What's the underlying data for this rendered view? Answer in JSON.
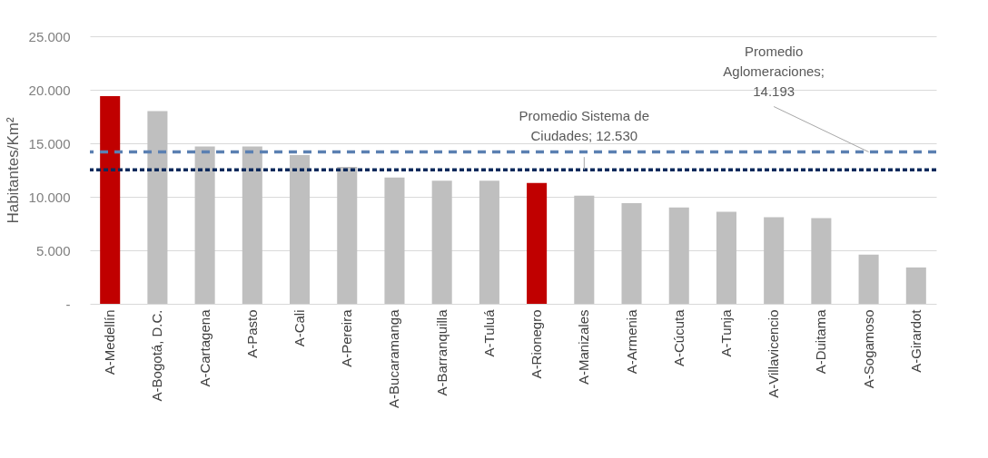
{
  "chart_data": {
    "type": "bar",
    "ylabel": "Habitantes/Km²",
    "categories": [
      "A-Medellín",
      "A-Bogotá, D.C.",
      "A-Cartagena",
      "A-Pasto",
      "A-Cali",
      "A-Pereira",
      "A-Bucaramanga",
      "A-Barranquilla",
      "A-Tuluá",
      "A-Rionegro",
      "A-Manizales",
      "A-Armenia",
      "A-Cúcuta",
      "A-Tunja",
      "A-Villavicencio",
      "A-Duitama",
      "A-Sogamoso",
      "A-Girardot"
    ],
    "values": [
      19400,
      18000,
      14700,
      14700,
      13900,
      12800,
      11800,
      11500,
      11500,
      11300,
      10100,
      9400,
      9000,
      8600,
      8100,
      8000,
      4600,
      3400
    ],
    "colors": [
      "#c00000",
      "#bfbfbf",
      "#bfbfbf",
      "#bfbfbf",
      "#bfbfbf",
      "#bfbfbf",
      "#bfbfbf",
      "#bfbfbf",
      "#bfbfbf",
      "#c00000",
      "#bfbfbf",
      "#bfbfbf",
      "#bfbfbf",
      "#bfbfbf",
      "#bfbfbf",
      "#bfbfbf",
      "#bfbfbf",
      "#bfbfbf"
    ],
    "ylim": [
      0,
      25000
    ],
    "yticks": [
      {
        "value": 0,
        "label": "-"
      },
      {
        "value": 5000,
        "label": "5.000"
      },
      {
        "value": 10000,
        "label": "10.000"
      },
      {
        "value": 15000,
        "label": "15.000"
      },
      {
        "value": 20000,
        "label": "20.000"
      },
      {
        "value": 25000,
        "label": "25.000"
      }
    ],
    "grid": "y",
    "ref_lines": [
      {
        "axis": "y",
        "value": 12530,
        "label": "Promedio Sistema de\nCiudades;  12.530",
        "color": "#0d2a5c",
        "line_style": "dotted"
      },
      {
        "axis": "y",
        "value": 14193,
        "label": "Promedio\nAglomeraciones;\n14.193",
        "color": "#5b80b2",
        "line_style": "dashed"
      }
    ]
  }
}
